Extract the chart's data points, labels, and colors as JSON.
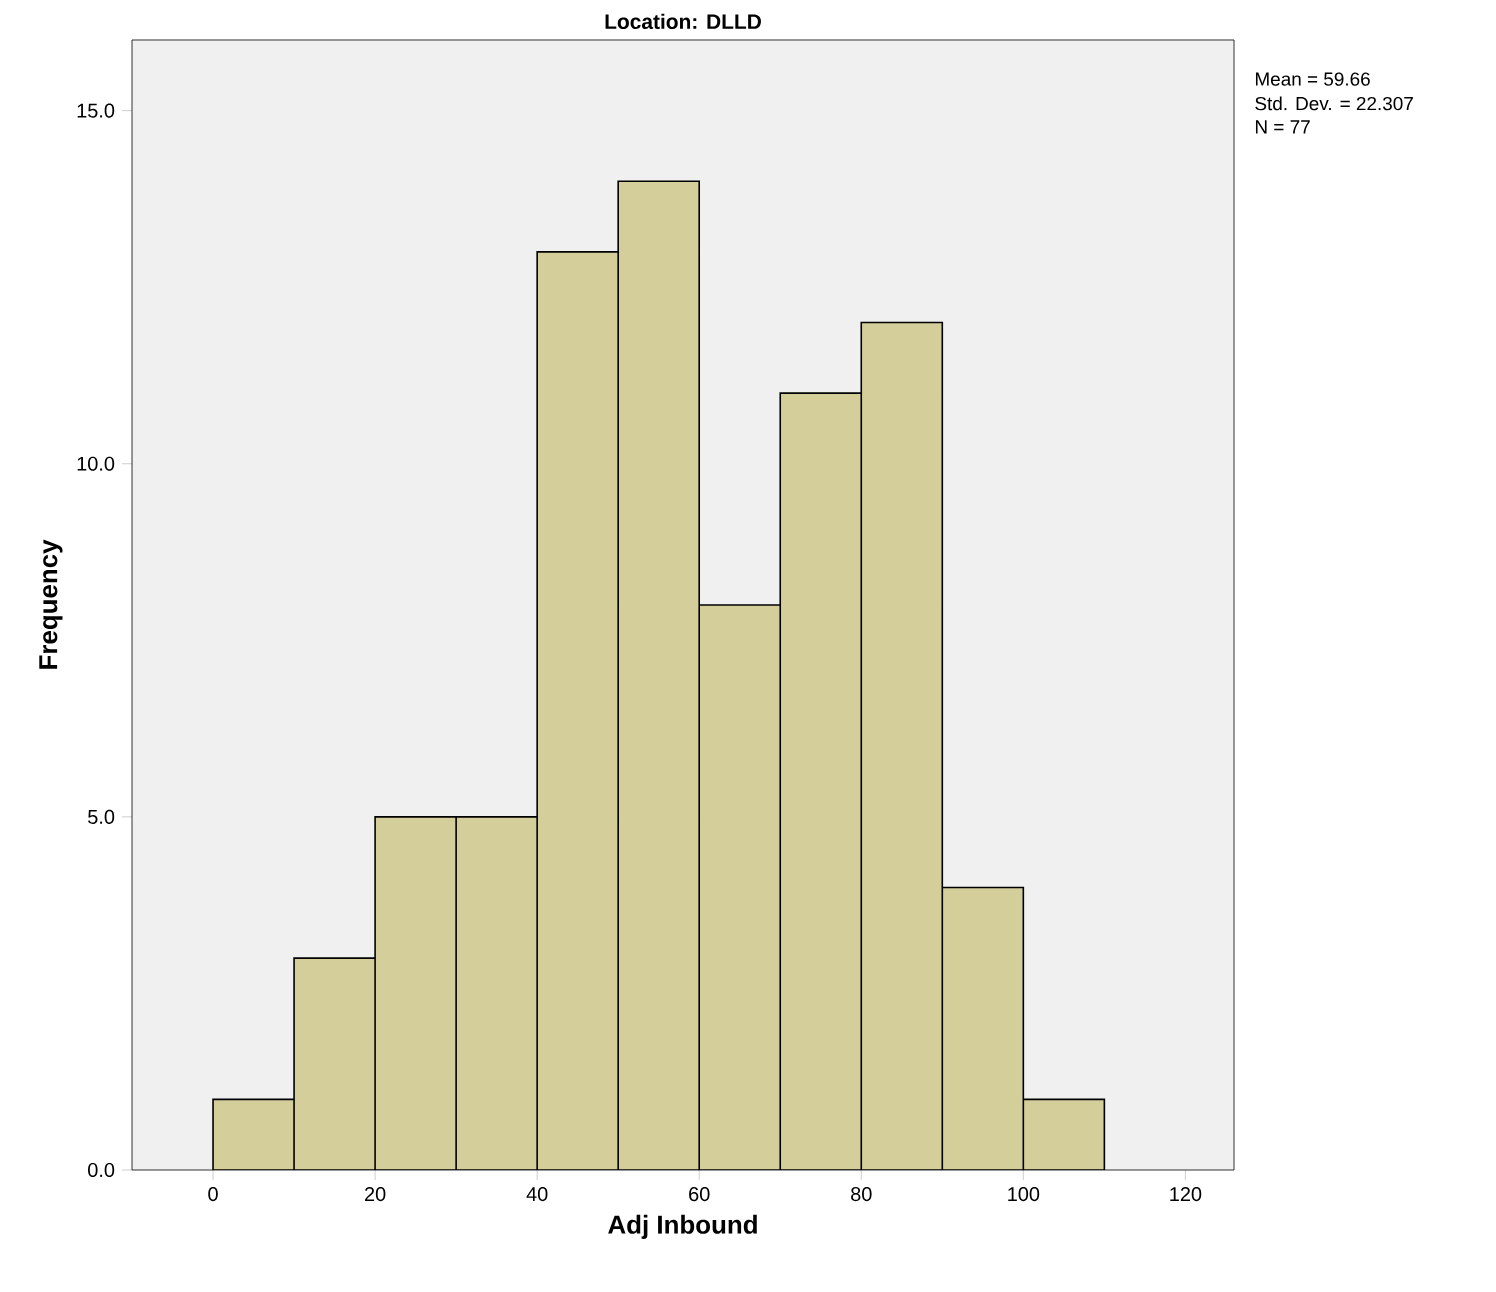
{
  "chart_data": {
    "type": "histogram",
    "title": "Location: DLLD",
    "xlabel": "Adj Inbound",
    "ylabel": "Frequency",
    "bins": [
      0,
      10,
      20,
      30,
      40,
      50,
      60,
      70,
      80,
      90,
      100,
      110
    ],
    "values": [
      1,
      3,
      5,
      5,
      13,
      14,
      8,
      11,
      12,
      4,
      1
    ],
    "color": "#d3ce9a",
    "xlim": [
      -10,
      126
    ],
    "xticks": [
      0,
      20,
      40,
      60,
      80,
      100,
      120
    ],
    "ylim": [
      0,
      16
    ],
    "yticks": [
      {
        "value": 0,
        "label": "0.0"
      },
      {
        "value": 5,
        "label": "5.0"
      },
      {
        "value": 10,
        "label": "10.0"
      },
      {
        "value": 15,
        "label": "15.0"
      }
    ],
    "grid": false,
    "annotations": [
      "Mean = 59.66",
      "Std. Dev. = 22.307",
      "N = 77"
    ]
  }
}
